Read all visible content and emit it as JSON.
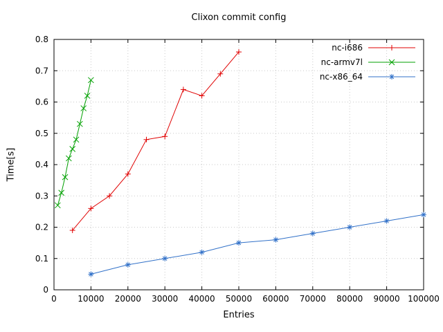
{
  "chart_data": {
    "type": "line",
    "title": "Clixon commit config",
    "xlabel": "Entries",
    "ylabel": "Time[s]",
    "xlim": [
      0,
      100000
    ],
    "ylim": [
      0,
      0.8
    ],
    "xticks": [
      0,
      10000,
      20000,
      30000,
      40000,
      50000,
      60000,
      70000,
      80000,
      90000,
      100000
    ],
    "yticks": [
      0,
      0.1,
      0.2,
      0.3,
      0.4,
      0.5,
      0.6,
      0.7,
      0.8
    ],
    "grid": true,
    "legend_position": "top-right",
    "series": [
      {
        "name": "nc-i686",
        "color": "#e00000",
        "marker": "plus",
        "x": [
          5000,
          10000,
          15000,
          20000,
          25000,
          30000,
          35000,
          40000,
          45000,
          50000
        ],
        "y": [
          0.19,
          0.26,
          0.3,
          0.37,
          0.48,
          0.49,
          0.64,
          0.62,
          0.69,
          0.76
        ]
      },
      {
        "name": "nc-armv7l",
        "color": "#00a000",
        "marker": "x",
        "x": [
          1000,
          2000,
          3000,
          4000,
          5000,
          6000,
          7000,
          8000,
          9000,
          10000
        ],
        "y": [
          0.27,
          0.31,
          0.36,
          0.42,
          0.45,
          0.48,
          0.53,
          0.58,
          0.62,
          0.67
        ]
      },
      {
        "name": "nc-x86_64",
        "color": "#3070c8",
        "marker": "star",
        "x": [
          10000,
          20000,
          30000,
          40000,
          50000,
          60000,
          70000,
          80000,
          90000,
          100000
        ],
        "y": [
          0.05,
          0.08,
          0.1,
          0.12,
          0.15,
          0.16,
          0.18,
          0.2,
          0.22,
          0.24
        ]
      }
    ]
  }
}
